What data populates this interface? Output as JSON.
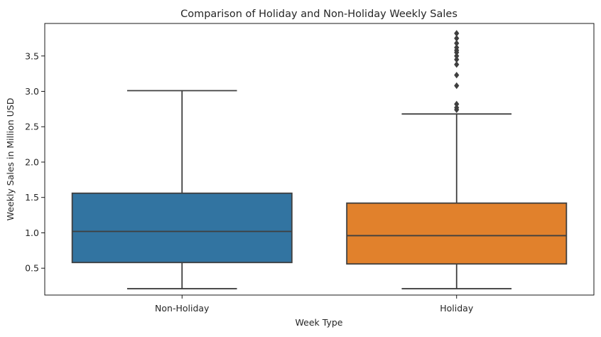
{
  "chart_data": {
    "type": "box",
    "title": "Comparison of Holiday and Non-Holiday Weekly Sales",
    "xlabel": "Week Type",
    "ylabel": "Weekly Sales in Million USD",
    "ylim": [
      0.12,
      3.96
    ],
    "yticks": [
      0.5,
      1.0,
      1.5,
      2.0,
      2.5,
      3.0,
      3.5
    ],
    "ytick_labels": [
      "0.5",
      "1.0",
      "1.5",
      "2.0",
      "2.5",
      "3.0",
      "3.5"
    ],
    "grid": false,
    "legend": "none",
    "categories": [
      "Non-Holiday",
      "Holiday"
    ],
    "boxes": [
      {
        "category": "Non-Holiday",
        "color": "#3274a1",
        "whisker_low": 0.21,
        "q1": 0.58,
        "median": 1.02,
        "q3": 1.56,
        "whisker_high": 3.01,
        "outliers": []
      },
      {
        "category": "Holiday",
        "color": "#e1812c",
        "whisker_low": 0.21,
        "q1": 0.56,
        "median": 0.96,
        "q3": 1.42,
        "whisker_high": 2.68,
        "outliers": [
          2.74,
          2.77,
          2.82,
          3.08,
          3.23,
          3.38,
          3.45,
          3.5,
          3.55,
          3.58,
          3.62,
          3.68,
          3.75,
          3.82
        ]
      }
    ],
    "style": {
      "edge_color": "#3f3f3f",
      "axis_color": "#000000"
    }
  }
}
